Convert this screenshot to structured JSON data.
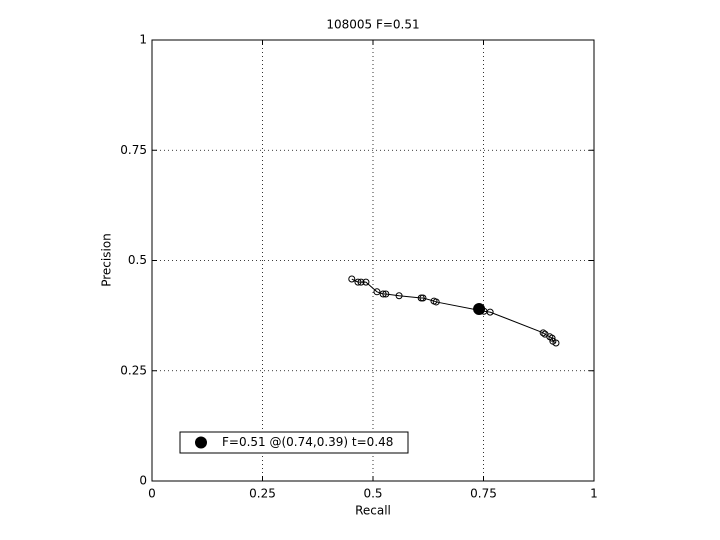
{
  "chart_data": {
    "type": "line",
    "title": "108005 F=0.51",
    "xlabel": "Recall",
    "ylabel": "Precision",
    "curve": {
      "x": [
        0.452,
        0.466,
        0.473,
        0.484,
        0.509,
        0.523,
        0.529,
        0.559,
        0.609,
        0.613,
        0.638,
        0.643,
        0.751,
        0.765,
        0.885,
        0.889,
        0.9,
        0.905,
        0.907,
        0.914
      ],
      "y": [
        0.458,
        0.451,
        0.451,
        0.451,
        0.429,
        0.424,
        0.424,
        0.42,
        0.415,
        0.415,
        0.408,
        0.406,
        0.385,
        0.383,
        0.336,
        0.333,
        0.327,
        0.324,
        0.317,
        0.313
      ],
      "color": "#000000"
    },
    "best": {
      "name": "F=0.51 @(0.74,0.39) t=0.48",
      "x": 0.74,
      "y": 0.39,
      "color": "#000000"
    },
    "xlim": [
      0,
      1
    ],
    "ylim": [
      0,
      1
    ],
    "xticks": [
      0,
      0.25,
      0.5,
      0.75,
      1
    ],
    "yticks": [
      0,
      0.25,
      0.5,
      0.75,
      1
    ],
    "grid": true,
    "legend_location": "lower left"
  }
}
